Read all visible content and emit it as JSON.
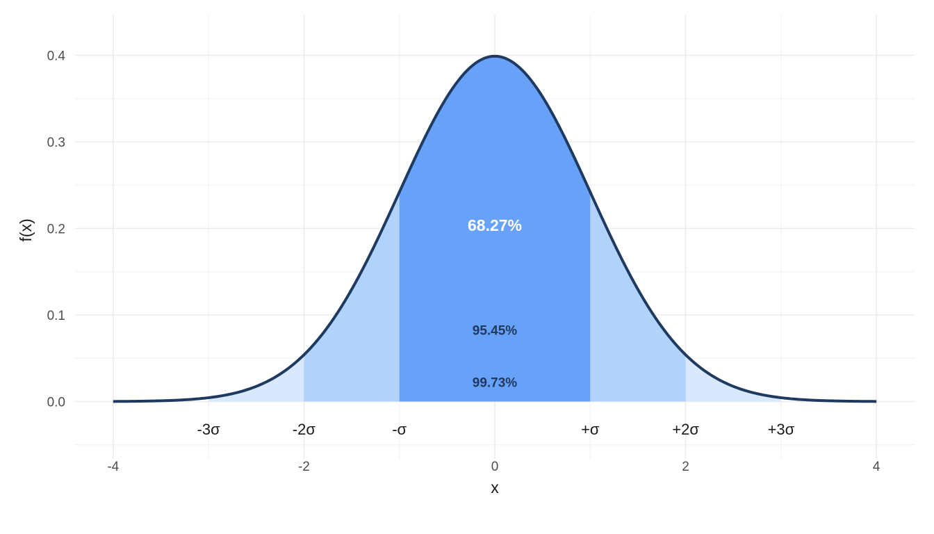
{
  "chart_data": {
    "type": "area",
    "title": "",
    "xlabel": "x",
    "ylabel": "f(x)",
    "xlim": [
      -4,
      4
    ],
    "ylim": [
      -0.05,
      0.42
    ],
    "x_ticks": [
      -4,
      -2,
      0,
      2,
      4
    ],
    "x_tick_labels": [
      "-4",
      "-2",
      "0",
      "2",
      "4"
    ],
    "y_ticks": [
      0.0,
      0.1,
      0.2,
      0.3,
      0.4
    ],
    "y_tick_labels": [
      "0.0",
      "0.1",
      "0.2",
      "0.3",
      "0.4"
    ],
    "grid": true,
    "curve": {
      "distribution": "standard normal density",
      "mean": 0,
      "sd": 1,
      "color": "#1f3a60"
    },
    "bands": [
      {
        "from": -3,
        "to": 3,
        "color": "#d9e8fc"
      },
      {
        "from": -2,
        "to": 2,
        "color": "#b0d2fb"
      },
      {
        "from": -1,
        "to": 1,
        "color": "#68a2f8"
      }
    ],
    "sigma_markers": [
      {
        "x": -3,
        "label": "-3σ"
      },
      {
        "x": -2,
        "label": "-2σ"
      },
      {
        "x": -1,
        "label": "-σ"
      },
      {
        "x": 1,
        "label": "+σ"
      },
      {
        "x": 2,
        "label": "+2σ"
      },
      {
        "x": 3,
        "label": "+3σ"
      }
    ],
    "annotations": [
      {
        "text": "68.27%",
        "x": 0,
        "y": 0.197,
        "color": "#ffffff",
        "size": "large"
      },
      {
        "text": "95.45%",
        "x": 0,
        "y": 0.077,
        "color": "#1f3a60",
        "size": "small"
      },
      {
        "text": "99.73%",
        "x": 0,
        "y": 0.017,
        "color": "#1f3a60",
        "size": "small"
      }
    ],
    "sigma_label_y": -0.022
  }
}
